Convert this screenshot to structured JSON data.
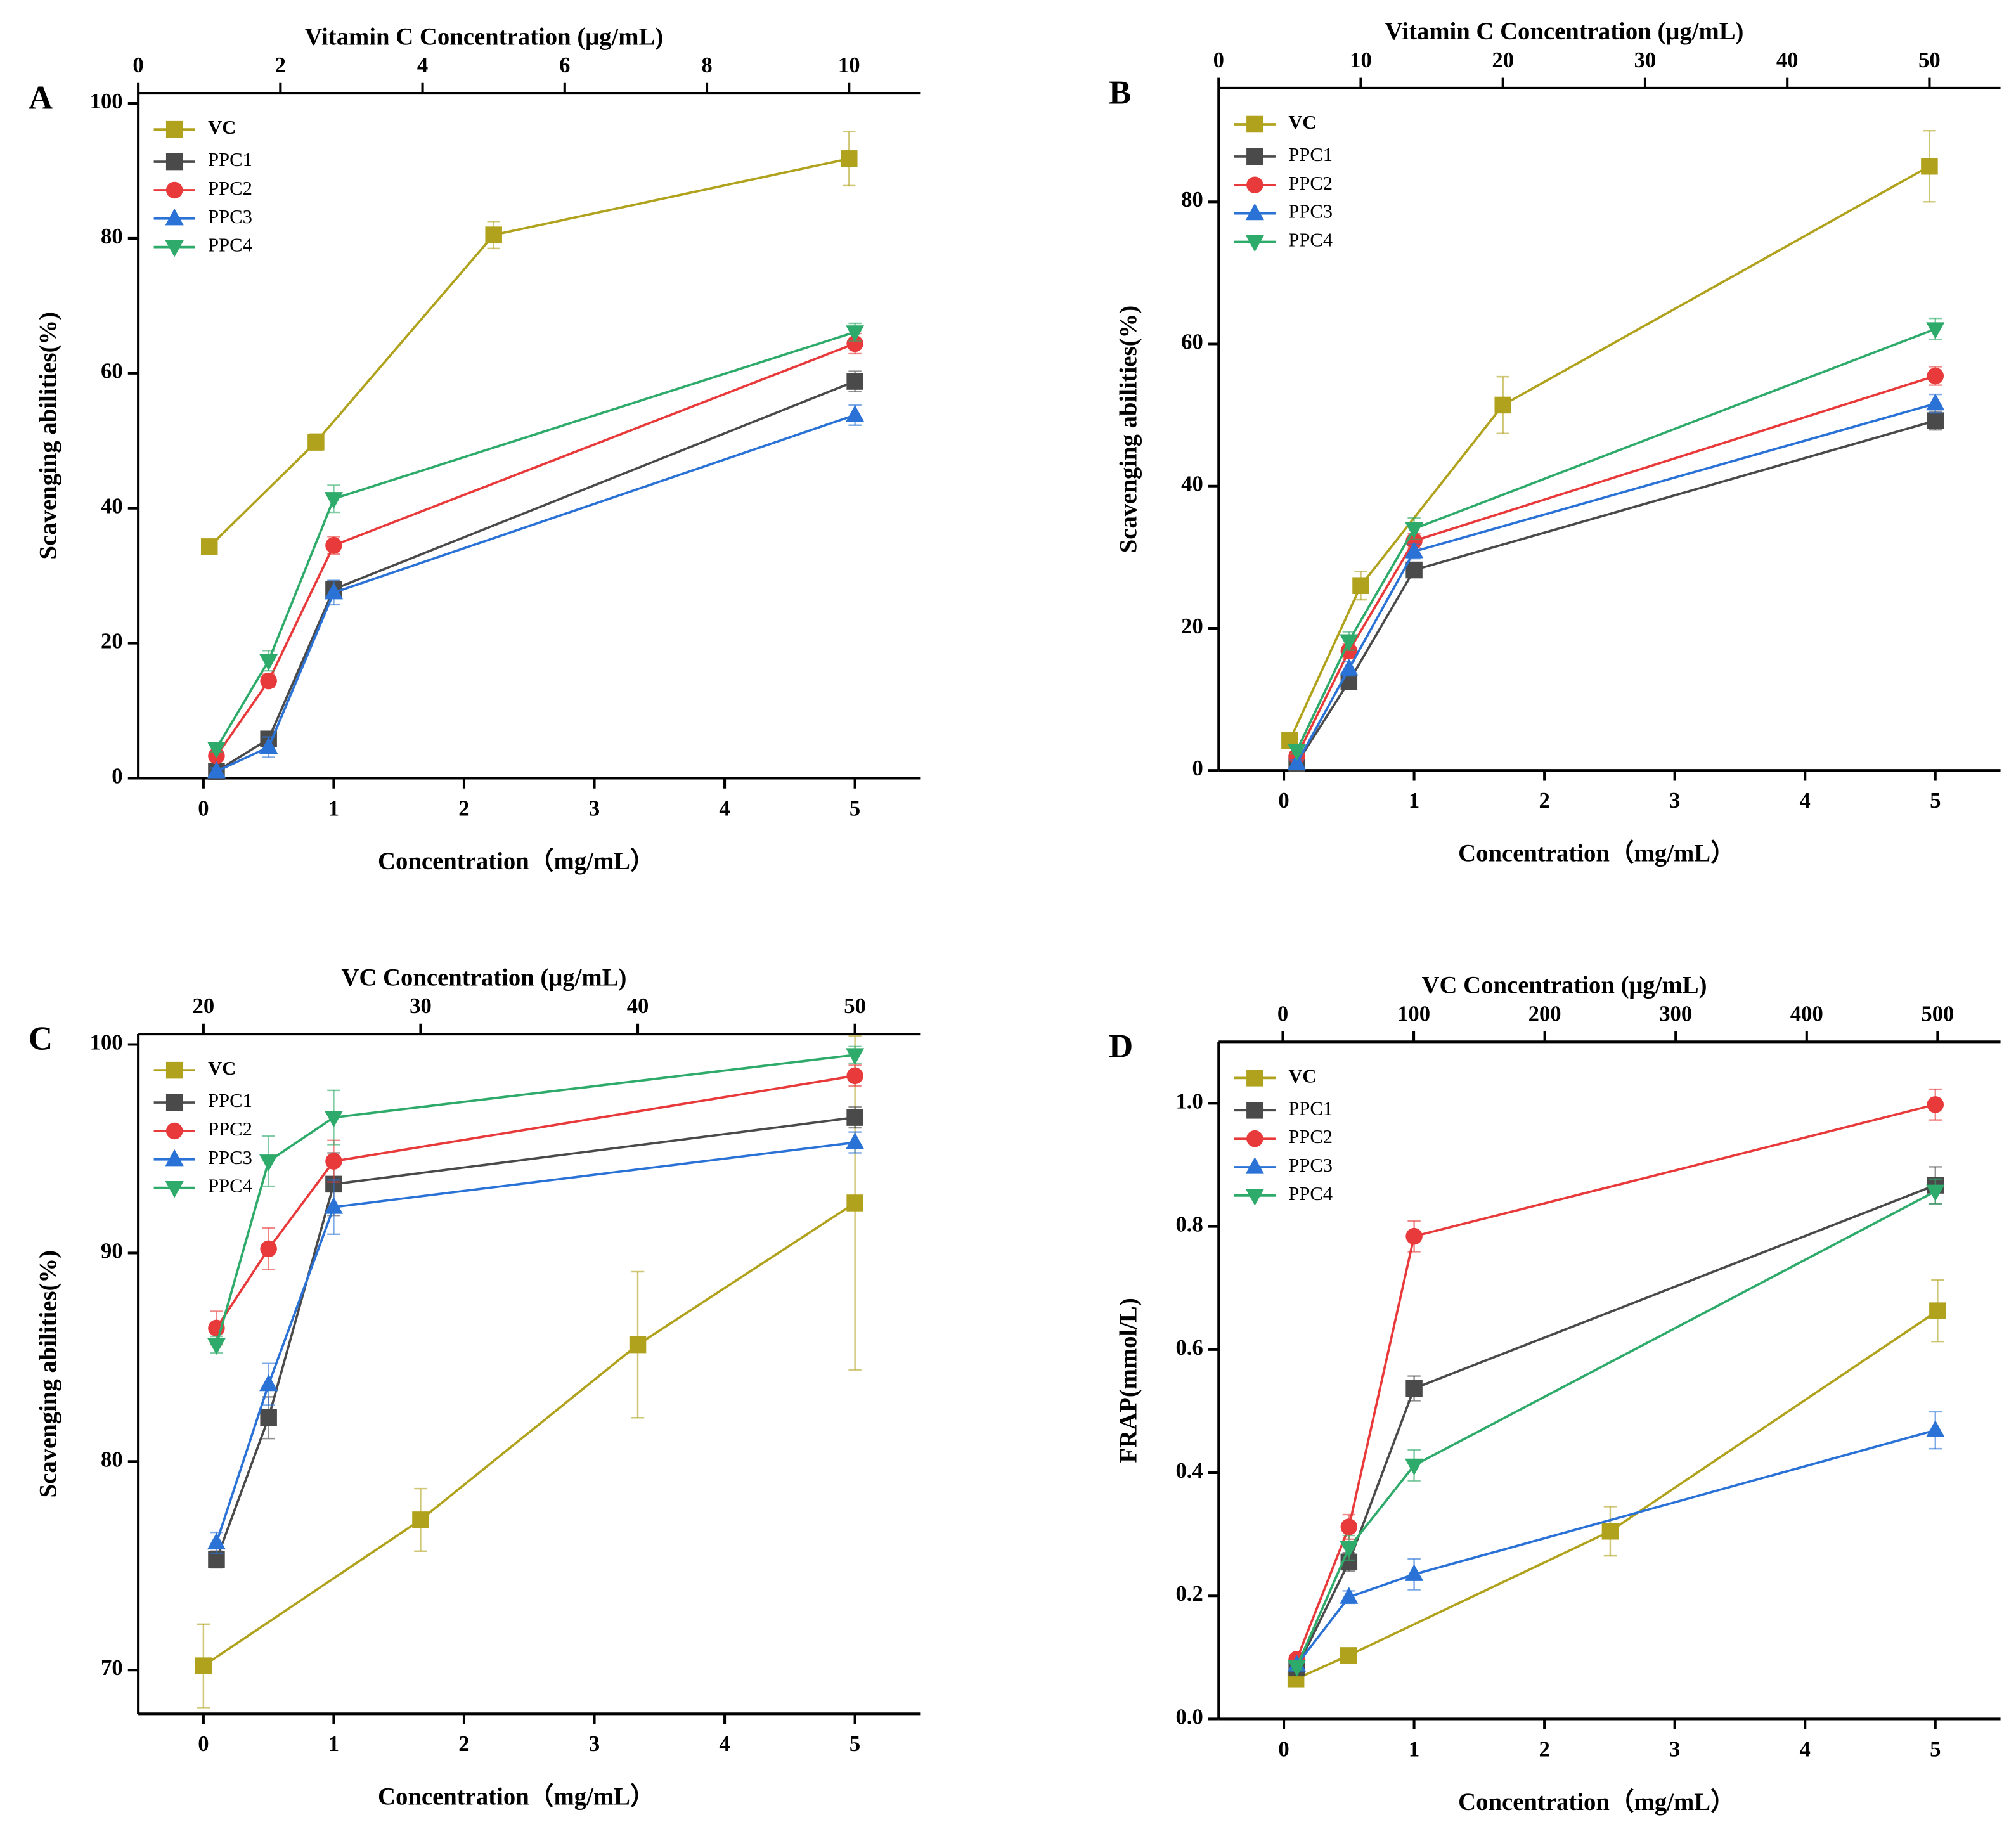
{
  "chart_data": [
    {
      "type": "line",
      "label": "A",
      "x_label": "Concentration（mg/mL）",
      "x2_label": "Vitamin C Concentration (μg/mL)",
      "y_label": "Scavenging abilities(%)",
      "xlim": [
        -0.5,
        5.5
      ],
      "xticks": [
        0,
        1,
        2,
        3,
        4,
        5
      ],
      "x2lim": [
        0,
        11
      ],
      "x2ticks": [
        0,
        2,
        4,
        6,
        8,
        10
      ],
      "ylim": [
        0,
        101.5
      ],
      "yticks": [
        0,
        20,
        40,
        60,
        80,
        100
      ],
      "legend": "upper left",
      "series": [
        {
          "name": "VC",
          "color": "#b0a21c",
          "marker": "square",
          "axis": "x2",
          "x": [
            1,
            2.5,
            5,
            10
          ],
          "values": [
            34.3,
            49.8,
            80.5,
            91.8
          ],
          "errors": [
            1,
            1.2,
            2,
            4
          ]
        },
        {
          "name": "PPC1",
          "color": "#4a4a4a",
          "marker": "square",
          "x": [
            0.1,
            0.5,
            1,
            5
          ],
          "values": [
            1.0,
            5.8,
            28.0,
            58.8
          ],
          "errors": [
            0.5,
            0.8,
            1.2,
            1.5
          ]
        },
        {
          "name": "PPC2",
          "color": "#e83a3a",
          "marker": "circle",
          "x": [
            0.1,
            0.5,
            1,
            5
          ],
          "values": [
            3.3,
            14.4,
            34.5,
            64.4
          ],
          "errors": [
            0.5,
            1,
            1.3,
            1.5
          ]
        },
        {
          "name": "PPC3",
          "color": "#2a72d6",
          "marker": "triangle-up",
          "x": [
            0.1,
            0.5,
            1,
            5
          ],
          "values": [
            1.0,
            4.6,
            27.5,
            53.8
          ],
          "errors": [
            0.5,
            1.5,
            1.8,
            1.5
          ]
        },
        {
          "name": "PPC4",
          "color": "#2eaa6a",
          "marker": "triangle-down",
          "x": [
            0.1,
            0.5,
            1,
            5
          ],
          "values": [
            4.4,
            17.4,
            41.4,
            66.1
          ],
          "errors": [
            0.5,
            1.5,
            2,
            1.3
          ]
        }
      ]
    },
    {
      "type": "line",
      "label": "B",
      "x_label": "Concentration（mg/mL）",
      "x2_label": "Vitamin C Concentration (μg/mL)",
      "y_label": "Scavenging abilities(%)",
      "xlim": [
        -0.5,
        5.5
      ],
      "xticks": [
        0,
        1,
        2,
        3,
        4,
        5
      ],
      "x2lim": [
        0,
        55
      ],
      "x2ticks": [
        0,
        10,
        20,
        30,
        40,
        50
      ],
      "ylim": [
        0,
        96
      ],
      "yticks": [
        0,
        20,
        40,
        60,
        80
      ],
      "legend": "upper left",
      "series": [
        {
          "name": "VC",
          "color": "#b0a21c",
          "marker": "square",
          "axis": "x2",
          "x": [
            5,
            10,
            20,
            50
          ],
          "values": [
            4.2,
            26,
            51.4,
            85
          ],
          "errors": [
            0.5,
            2,
            4,
            5
          ]
        },
        {
          "name": "PPC1",
          "color": "#4a4a4a",
          "marker": "square",
          "x": [
            0.1,
            0.5,
            1,
            5
          ],
          "values": [
            1.0,
            12.5,
            28.2,
            49.2
          ],
          "errors": [
            0.5,
            1,
            1,
            1.3
          ]
        },
        {
          "name": "PPC2",
          "color": "#e83a3a",
          "marker": "circle",
          "x": [
            0.1,
            0.5,
            1,
            5
          ],
          "values": [
            2.0,
            16.8,
            32.3,
            55.5
          ],
          "errors": [
            0.5,
            1,
            1,
            1.3
          ]
        },
        {
          "name": "PPC3",
          "color": "#2a72d6",
          "marker": "triangle-up",
          "x": [
            0.1,
            0.5,
            1,
            5
          ],
          "values": [
            1.0,
            14.3,
            30.8,
            51.6
          ],
          "errors": [
            0.5,
            1,
            1,
            1.3
          ]
        },
        {
          "name": "PPC4",
          "color": "#2eaa6a",
          "marker": "triangle-down",
          "x": [
            0.1,
            0.5,
            1,
            5
          ],
          "values": [
            2.8,
            18.2,
            34.0,
            62.1
          ],
          "errors": [
            0.5,
            1.3,
            1.5,
            1.5
          ]
        }
      ]
    },
    {
      "type": "line",
      "label": "C",
      "x_label": "Concentration（mg/mL）",
      "x2_label": "VC Concentration (μg/mL)",
      "y_label": "Scavenging abilities(%)",
      "xlim": [
        -0.5,
        5.5
      ],
      "xticks": [
        0,
        1,
        2,
        3,
        4,
        5
      ],
      "x2lim": [
        17,
        53
      ],
      "x2ticks": [
        20,
        30,
        40,
        50
      ],
      "ylim": [
        67.9,
        100.5
      ],
      "yticks": [
        70,
        80,
        90,
        100
      ],
      "legend": "upper left",
      "series": [
        {
          "name": "VC",
          "color": "#b0a21c",
          "marker": "square",
          "axis": "x2",
          "x": [
            20,
            30,
            40,
            50
          ],
          "values": [
            70.2,
            77.2,
            85.6,
            92.4
          ],
          "errors": [
            2,
            1.5,
            3.5,
            8
          ]
        },
        {
          "name": "PPC1",
          "color": "#4a4a4a",
          "marker": "square",
          "x": [
            0.1,
            0.5,
            1,
            5
          ],
          "values": [
            75.3,
            82.1,
            93.3,
            96.5
          ],
          "errors": [
            0.4,
            1,
            1.5,
            0.5
          ]
        },
        {
          "name": "PPC2",
          "color": "#e83a3a",
          "marker": "circle",
          "x": [
            0.1,
            0.5,
            1,
            5
          ],
          "values": [
            86.4,
            90.2,
            94.4,
            98.5
          ],
          "errors": [
            0.8,
            1,
            1,
            0.5
          ]
        },
        {
          "name": "PPC3",
          "color": "#2a72d6",
          "marker": "triangle-up",
          "x": [
            0.1,
            0.5,
            1,
            5
          ],
          "values": [
            76.1,
            83.7,
            92.2,
            95.3
          ],
          "errors": [
            0.5,
            1,
            1.3,
            0.5
          ]
        },
        {
          "name": "PPC4",
          "color": "#2eaa6a",
          "marker": "triangle-down",
          "x": [
            0.1,
            0.5,
            1,
            5
          ],
          "values": [
            85.6,
            94.4,
            96.5,
            99.5
          ],
          "errors": [
            0.4,
            1.2,
            1.3,
            0.4
          ]
        }
      ]
    },
    {
      "type": "line",
      "label": "D",
      "x_label": "Concentration（mg/mL）",
      "x2_label": "VC Concentration (μg/mL)",
      "y_label": "FRAP(mmol/L)",
      "xlim": [
        -0.5,
        5.5
      ],
      "xticks": [
        0,
        1,
        2,
        3,
        4,
        5
      ],
      "x2lim": [
        -49,
        548
      ],
      "x2ticks": [
        0,
        100,
        200,
        300,
        400,
        500
      ],
      "ylim": [
        0,
        1.1
      ],
      "yticks": [
        {
          "value": 0,
          "label": "0.0"
        },
        0.2,
        0.4,
        0.6,
        0.8,
        {
          "value": 1,
          "label": "1.0"
        }
      ],
      "legend": "upper left",
      "series": [
        {
          "name": "VC",
          "color": "#b0a21c",
          "marker": "square",
          "axis": "x2",
          "x": [
            10,
            50,
            250,
            500
          ],
          "values": [
            0.065,
            0.103,
            0.305,
            0.663
          ],
          "errors": [
            0.005,
            0.005,
            0.04,
            0.05
          ]
        },
        {
          "name": "PPC1",
          "color": "#4a4a4a",
          "marker": "square",
          "x": [
            0.1,
            0.5,
            1,
            5
          ],
          "values": [
            0.083,
            0.255,
            0.537,
            0.867
          ],
          "errors": [
            0.005,
            0.015,
            0.02,
            0.03
          ]
        },
        {
          "name": "PPC2",
          "color": "#e83a3a",
          "marker": "circle",
          "x": [
            0.1,
            0.5,
            1,
            5
          ],
          "values": [
            0.097,
            0.312,
            0.784,
            0.998
          ],
          "errors": [
            0.005,
            0.02,
            0.025,
            0.025
          ]
        },
        {
          "name": "PPC3",
          "color": "#2a72d6",
          "marker": "triangle-up",
          "x": [
            0.1,
            0.5,
            1,
            5
          ],
          "values": [
            0.088,
            0.198,
            0.235,
            0.469
          ],
          "errors": [
            0.005,
            0.01,
            0.025,
            0.03
          ]
        },
        {
          "name": "PPC4",
          "color": "#2eaa6a",
          "marker": "triangle-down",
          "x": [
            0.1,
            0.5,
            1,
            5
          ],
          "values": [
            0.085,
            0.278,
            0.412,
            0.857
          ],
          "errors": [
            0.005,
            0.02,
            0.025,
            0.02
          ]
        }
      ]
    }
  ]
}
